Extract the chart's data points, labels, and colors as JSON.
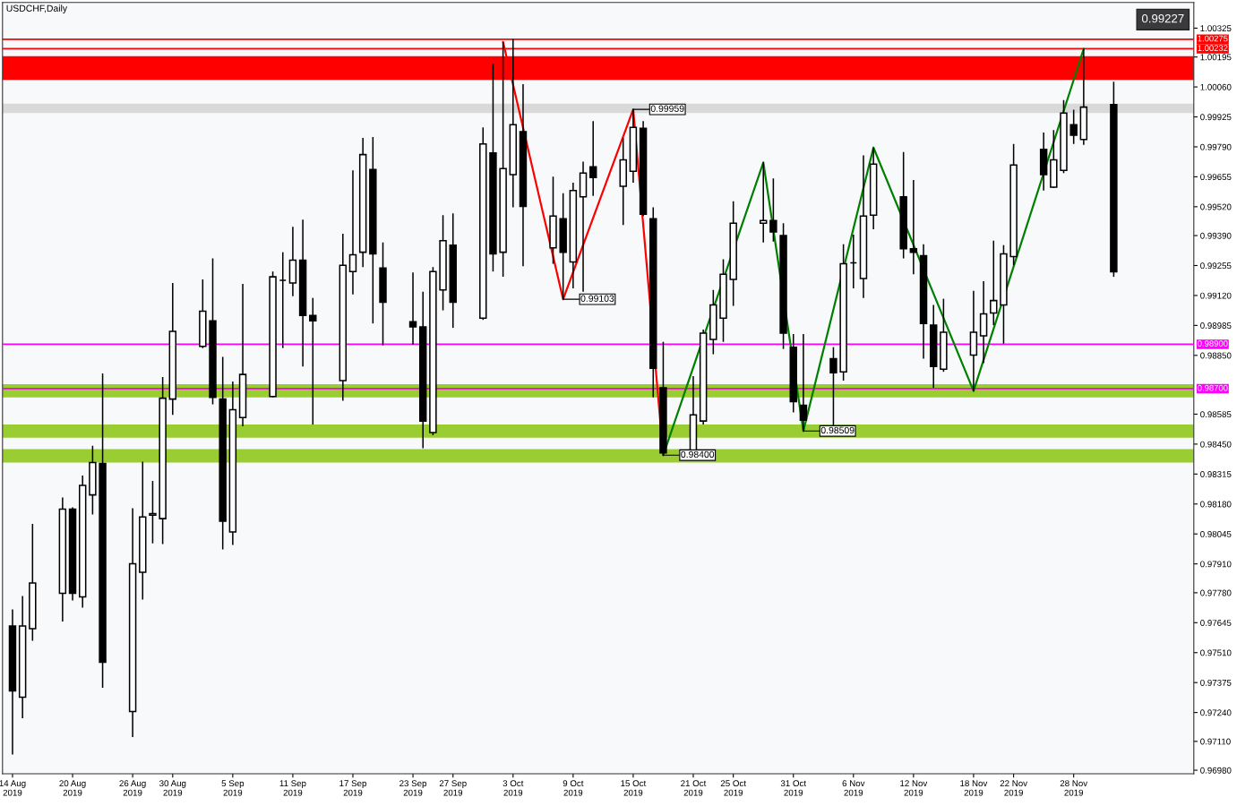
{
  "chart_data": {
    "type": "candlestick",
    "title": "USDCHF,Daily",
    "x": [
      "2019-08-14",
      "2019-08-15",
      "2019-08-16",
      "2019-08-19",
      "2019-08-20",
      "2019-08-21",
      "2019-08-22",
      "2019-08-23",
      "2019-08-26",
      "2019-08-27",
      "2019-08-28",
      "2019-08-29",
      "2019-08-30",
      "2019-09-02",
      "2019-09-03",
      "2019-09-04",
      "2019-09-05",
      "2019-09-06",
      "2019-09-09",
      "2019-09-10",
      "2019-09-11",
      "2019-09-12",
      "2019-09-13",
      "2019-09-16",
      "2019-09-17",
      "2019-09-18",
      "2019-09-19",
      "2019-09-20",
      "2019-09-23",
      "2019-09-24",
      "2019-09-25",
      "2019-09-26",
      "2019-09-27",
      "2019-09-30",
      "2019-10-01",
      "2019-10-02",
      "2019-10-03",
      "2019-10-04",
      "2019-10-07",
      "2019-10-08",
      "2019-10-09",
      "2019-10-10",
      "2019-10-11",
      "2019-10-14",
      "2019-10-15",
      "2019-10-16",
      "2019-10-17",
      "2019-10-18",
      "2019-10-21",
      "2019-10-22",
      "2019-10-23",
      "2019-10-24",
      "2019-10-25",
      "2019-10-28",
      "2019-10-29",
      "2019-10-30",
      "2019-10-31",
      "2019-11-01",
      "2019-11-04",
      "2019-11-05",
      "2019-11-06",
      "2019-11-07",
      "2019-11-08",
      "2019-11-11",
      "2019-11-12",
      "2019-11-13",
      "2019-11-14",
      "2019-11-15",
      "2019-11-18",
      "2019-11-19",
      "2019-11-20",
      "2019-11-21",
      "2019-11-22",
      "2019-11-25",
      "2019-11-26",
      "2019-11-27",
      "2019-11-28",
      "2019-11-29",
      "2019-12-02"
    ],
    "ohlc": [
      [
        0.9763,
        0.97705,
        0.97051,
        0.97337
      ],
      [
        0.97309,
        0.97765,
        0.97214,
        0.9763
      ],
      [
        0.97618,
        0.9809,
        0.97563,
        0.97824
      ],
      [
        0.97777,
        0.98209,
        0.9765,
        0.98157
      ],
      [
        0.98157,
        0.98165,
        0.97745,
        0.97777
      ],
      [
        0.97761,
        0.98308,
        0.97713,
        0.98264
      ],
      [
        0.98221,
        0.98443,
        0.98133,
        0.98367
      ],
      [
        0.98363,
        0.98768,
        0.97352,
        0.97467
      ],
      [
        0.97245,
        0.98161,
        0.9713,
        0.97911
      ],
      [
        0.97872,
        0.98371,
        0.97749,
        0.98122
      ],
      [
        0.9813,
        0.98284,
        0.98003,
        0.98137
      ],
      [
        0.98114,
        0.98752,
        0.97999,
        0.98657
      ],
      [
        0.98653,
        0.99176,
        0.98582,
        0.98958
      ],
      [
        0.98891,
        0.99192,
        0.98883,
        0.99049
      ],
      [
        0.99006,
        0.99287,
        0.98629,
        0.98661
      ],
      [
        0.98653,
        0.98843,
        0.97975,
        0.98102
      ],
      [
        0.98054,
        0.98732,
        0.97995,
        0.98605
      ],
      [
        0.9857,
        0.99172,
        0.9853,
        0.98764
      ],
      [
        0.98665,
        0.99228,
        0.98661,
        0.99204
      ],
      [
        0.99188,
        0.99315,
        0.98883,
        0.99188
      ],
      [
        0.99176,
        0.9943,
        0.99117,
        0.99279
      ],
      [
        0.99279,
        0.99462,
        0.988,
        0.9903
      ],
      [
        0.9903,
        0.99109,
        0.98538,
        0.99006
      ],
      [
        0.98736,
        0.99398,
        0.98645,
        0.99256
      ],
      [
        0.99228,
        0.99684,
        0.99125,
        0.99303
      ],
      [
        0.99315,
        0.9983,
        0.99248,
        0.99755
      ],
      [
        0.99688,
        0.99834,
        0.98994,
        0.99307
      ],
      [
        0.99244,
        0.99359,
        0.98895,
        0.99089
      ],
      [
        0.99002,
        0.99224,
        0.98899,
        0.98978
      ],
      [
        0.98978,
        0.99137,
        0.98431,
        0.98554
      ],
      [
        0.98502,
        0.99248,
        0.9849,
        0.99228
      ],
      [
        0.99145,
        0.99482,
        0.99053,
        0.99367
      ],
      [
        0.99347,
        0.9949,
        0.98974,
        0.99089
      ],
      [
        0.99018,
        0.99878,
        0.9901,
        0.99803
      ],
      [
        0.99763,
        1.00164,
        0.99228,
        0.99307
      ],
      [
        0.99315,
        1.00263,
        0.99204,
        0.99692
      ],
      [
        0.99665,
        1.00275,
        0.99517,
        0.9989
      ],
      [
        0.99858,
        1.00072,
        0.99252,
        0.99521
      ],
      [
        0.99335,
        0.99656,
        0.99263,
        0.99478
      ],
      [
        0.99466,
        0.99581,
        0.99103,
        0.99315
      ],
      [
        0.99271,
        0.99628,
        0.99152,
        0.99593
      ],
      [
        0.99565,
        0.99723,
        0.99137,
        0.99672
      ],
      [
        0.997,
        0.99906,
        0.99569,
        0.99652
      ],
      [
        0.99612,
        0.9983,
        0.99438,
        0.99731
      ],
      [
        0.9968,
        0.99959,
        0.99628,
        0.99878
      ],
      [
        0.99874,
        0.99906,
        0.99478,
        0.99486
      ],
      [
        0.99466,
        0.99517,
        0.98661,
        0.98792
      ],
      [
        0.98704,
        0.98911,
        0.984,
        0.9841
      ],
      [
        0.98405,
        0.98756,
        0.984,
        0.98582
      ],
      [
        0.98554,
        0.98966,
        0.98538,
        0.9895
      ],
      [
        0.98922,
        0.99145,
        0.98855,
        0.99077
      ],
      [
        0.99018,
        0.99283,
        0.98911,
        0.99216
      ],
      [
        0.99192,
        0.99545,
        0.99073,
        0.99446
      ],
      [
        0.99446,
        0.9972,
        0.99359,
        0.99458
      ],
      [
        0.99458,
        0.99648,
        0.99363,
        0.99406
      ],
      [
        0.9939,
        0.99446,
        0.98879,
        0.9895
      ],
      [
        0.98887,
        0.98946,
        0.98593,
        0.98641
      ],
      [
        0.98625,
        0.98946,
        0.98509,
        0.98558
      ],
      [
        0.98835,
        0.98887,
        0.98518,
        0.98772
      ],
      [
        0.98776,
        0.99351,
        0.98736,
        0.99263
      ],
      [
        0.99267,
        0.99394,
        0.99152,
        0.99267
      ],
      [
        0.99196,
        0.99751,
        0.99109,
        0.99478
      ],
      [
        0.99482,
        0.99787,
        0.99418,
        0.99712
      ],
      [
        0.99565,
        0.99767,
        0.99287,
        0.99331
      ],
      [
        0.99331,
        0.9964,
        0.99216,
        0.99315
      ],
      [
        0.99299,
        0.99351,
        0.98835,
        0.98994
      ],
      [
        0.98986,
        0.99077,
        0.98704,
        0.988
      ],
      [
        0.98788,
        0.99105,
        0.98776,
        0.98954
      ],
      [
        0.98851,
        0.99141,
        0.98689,
        0.98954
      ],
      [
        0.98938,
        0.99184,
        0.98815,
        0.99037
      ],
      [
        0.99041,
        0.99367,
        0.98986,
        0.99097
      ],
      [
        0.99077,
        0.99347,
        0.98903,
        0.99307
      ],
      [
        0.99295,
        0.99803,
        0.99256,
        0.99708
      ],
      [
        0.99779,
        0.99854,
        0.99593,
        0.99665
      ],
      [
        0.99608,
        0.99866,
        0.99604,
        0.99731
      ],
      [
        0.99684,
        1.00001,
        0.99672,
        0.99942
      ],
      [
        0.9989,
        0.99957,
        0.99803,
        0.99842
      ],
      [
        0.99823,
        1.00232,
        0.99799,
        0.99969
      ],
      [
        0.99981,
        1.00084,
        0.99204,
        0.99227
      ]
    ],
    "series": [
      {
        "type": "line",
        "color": "#ff0000",
        "x": [
          "2019-10-02",
          "2019-10-08",
          "2019-10-15",
          "2019-10-18"
        ],
        "values": [
          1.00263,
          0.99103,
          0.99959,
          0.984
        ]
      },
      {
        "type": "line",
        "color": "#008000",
        "x": [
          "2019-10-18",
          "2019-10-28",
          "2019-11-01",
          "2019-11-08",
          "2019-11-18",
          "2019-11-29"
        ],
        "values": [
          0.984,
          0.9972,
          0.98509,
          0.99787,
          0.98689,
          1.00232
        ]
      }
    ],
    "xlim": [
      "2019-08-13",
      "2019-12-10"
    ],
    "xticks": [
      {
        "value": "2019-08-14",
        "label": "14 Aug 2019"
      },
      {
        "value": "2019-08-20",
        "label": "20 Aug 2019"
      },
      {
        "value": "2019-08-26",
        "label": "26 Aug 2019"
      },
      {
        "value": "2019-08-30",
        "label": "30 Aug 2019"
      },
      {
        "value": "2019-09-05",
        "label": "5 Sep 2019"
      },
      {
        "value": "2019-09-11",
        "label": "11 Sep 2019"
      },
      {
        "value": "2019-09-17",
        "label": "17 Sep 2019"
      },
      {
        "value": "2019-09-23",
        "label": "23 Sep 2019"
      },
      {
        "value": "2019-09-27",
        "label": "27 Sep 2019"
      },
      {
        "value": "2019-10-03",
        "label": "3 Oct 2019"
      },
      {
        "value": "2019-10-09",
        "label": "9 Oct 2019"
      },
      {
        "value": "2019-10-15",
        "label": "15 Oct 2019"
      },
      {
        "value": "2019-10-21",
        "label": "21 Oct 2019"
      },
      {
        "value": "2019-10-25",
        "label": "25 Oct 2019"
      },
      {
        "value": "2019-10-31",
        "label": "31 Oct 2019"
      },
      {
        "value": "2019-11-06",
        "label": "6 Nov 2019"
      },
      {
        "value": "2019-11-12",
        "label": "12 Nov 2019"
      },
      {
        "value": "2019-11-18",
        "label": "18 Nov 2019"
      },
      {
        "value": "2019-11-22",
        "label": "22 Nov 2019"
      },
      {
        "value": "2019-11-28",
        "label": "28 Nov 2019"
      }
    ],
    "ylim": [
      0.96964,
      1.00441
    ],
    "yticks": [
      {
        "value": 1.00325,
        "label": "1.00325"
      },
      {
        "value": 1.00195,
        "label": "1.00195"
      },
      {
        "value": 1.0006,
        "label": "1.00060"
      },
      {
        "value": 0.99925,
        "label": "0.99925"
      },
      {
        "value": 0.9979,
        "label": "0.99790"
      },
      {
        "value": 0.99655,
        "label": "0.99655"
      },
      {
        "value": 0.9952,
        "label": "0.99520"
      },
      {
        "value": 0.9939,
        "label": "0.99390"
      },
      {
        "value": 0.99255,
        "label": "0.99255"
      },
      {
        "value": 0.9912,
        "label": "0.99120"
      },
      {
        "value": 0.98985,
        "label": "0.98985"
      },
      {
        "value": 0.9885,
        "label": "0.98850"
      },
      {
        "value": 0.98585,
        "label": "0.98585"
      },
      {
        "value": 0.9845,
        "label": "0.98450"
      },
      {
        "value": 0.98315,
        "label": "0.98315"
      },
      {
        "value": 0.9818,
        "label": "0.98180"
      },
      {
        "value": 0.98045,
        "label": "0.98045"
      },
      {
        "value": 0.9791,
        "label": "0.97910"
      },
      {
        "value": 0.9778,
        "label": "0.97780"
      },
      {
        "value": 0.97645,
        "label": "0.97645"
      },
      {
        "value": 0.9751,
        "label": "0.97510"
      },
      {
        "value": 0.97375,
        "label": "0.97375"
      },
      {
        "value": 0.9724,
        "label": "0.97240"
      },
      {
        "value": 0.9711,
        "label": "0.97110"
      },
      {
        "value": 0.9698,
        "label": "0.96980"
      }
    ],
    "ref_lines": [
      {
        "axis": "y",
        "value": 1.00275,
        "label": "1.00275",
        "color": "#ff0000"
      },
      {
        "axis": "y",
        "value": 1.00232,
        "label": "1.00232",
        "color": "#ff0000"
      },
      {
        "axis": "y",
        "value": 0.989,
        "label": "0.98900",
        "color": "#ff00ff"
      },
      {
        "axis": "y",
        "value": 0.987,
        "label": "0.98700",
        "color": "#ff00ff"
      }
    ],
    "bands": [
      {
        "axis": "y",
        "from": 1.00092,
        "to": 1.00199,
        "color": "#ff0000"
      },
      {
        "axis": "y",
        "from": 0.99942,
        "to": 0.99985,
        "color": "#d9d9d9"
      },
      {
        "axis": "y",
        "from": 0.98661,
        "to": 0.9872,
        "color": "#9acd32"
      },
      {
        "axis": "y",
        "from": 0.98479,
        "to": 0.98538,
        "color": "#9acd32"
      },
      {
        "axis": "y",
        "from": 0.98367,
        "to": 0.98427,
        "color": "#9acd32"
      }
    ],
    "annotations": [
      {
        "text": "0.99959",
        "x": "2019-10-15",
        "y": 0.99959
      },
      {
        "text": "0.99103",
        "x": "2019-10-08",
        "y": 0.99103
      },
      {
        "text": "0.98509",
        "x": "2019-11-01",
        "y": 0.98509
      },
      {
        "text": "0.98400",
        "x": "2019-10-18",
        "y": 0.984
      },
      "0.99227"
    ]
  }
}
